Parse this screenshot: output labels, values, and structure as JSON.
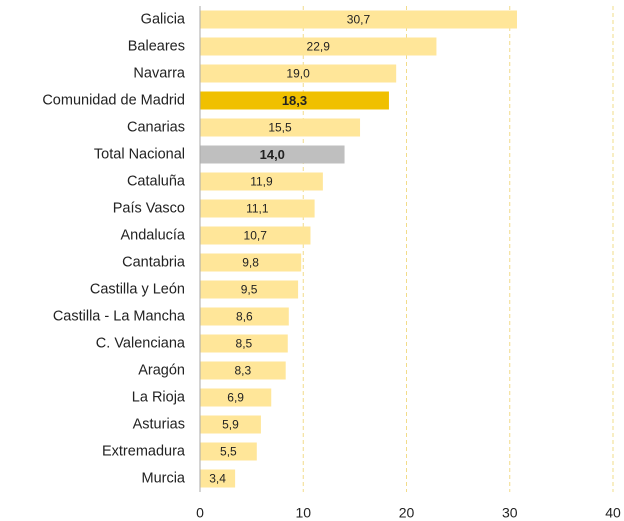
{
  "chart_data": {
    "type": "barh",
    "categories": [
      "Galicia",
      "Baleares",
      "Navarra",
      "Comunidad de Madrid",
      "Canarias",
      "Total Nacional",
      "Cataluña",
      "País Vasco",
      "Andalucía",
      "Cantabria",
      "Castilla y León",
      "Castilla - La Mancha",
      "C. Valenciana",
      "Aragón",
      "La Rioja",
      "Asturias",
      "Extremadura",
      "Murcia"
    ],
    "values": [
      30.7,
      22.9,
      19.0,
      18.3,
      15.5,
      14.0,
      11.9,
      11.1,
      10.7,
      9.8,
      9.5,
      8.6,
      8.5,
      8.3,
      6.9,
      5.9,
      5.5,
      3.4
    ],
    "value_labels": [
      "30,7",
      "22,9",
      "19,0",
      "18,3",
      "15,5",
      "14,0",
      "11,9",
      "11,1",
      "10,7",
      "9,8",
      "9,5",
      "8,6",
      "8,5",
      "8,3",
      "6,9",
      "5,9",
      "5,5",
      "3,4"
    ],
    "color": "#ffe699",
    "colors": [
      "#ffe699",
      "#ffe699",
      "#ffe699",
      "#f0c000",
      "#ffe699",
      "#bfbfbf",
      "#ffe699",
      "#ffe699",
      "#ffe699",
      "#ffe699",
      "#ffe699",
      "#ffe699",
      "#ffe699",
      "#ffe699",
      "#ffe699",
      "#ffe699",
      "#ffe699",
      "#ffe699"
    ],
    "xlim": [
      0,
      40
    ],
    "xticks": [
      0,
      10,
      20,
      30,
      40
    ],
    "grid": true
  }
}
